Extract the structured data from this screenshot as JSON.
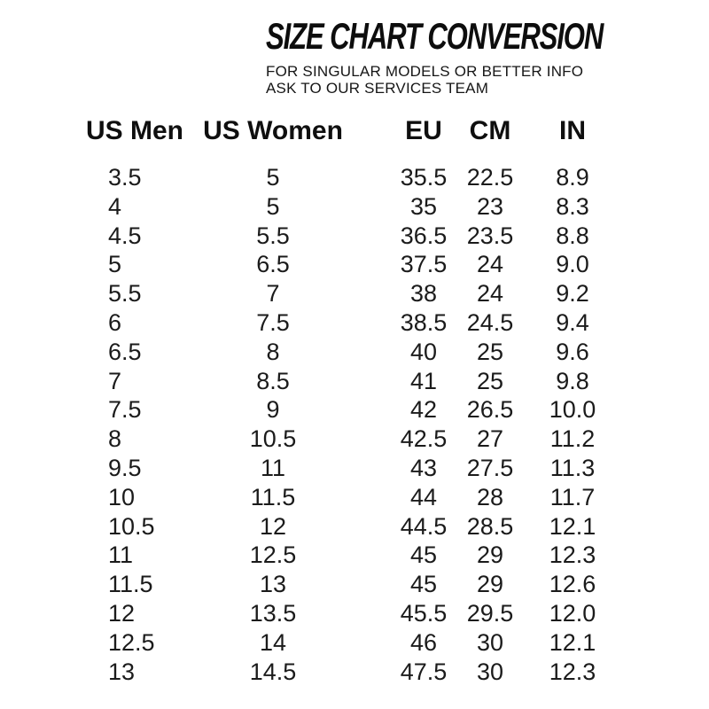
{
  "colors": {
    "text": "#141414",
    "background": "#ffffff"
  },
  "chart_data": {
    "type": "table",
    "title": "SIZE CHART CONVERSION",
    "subtitle": [
      "FOR SINGULAR MODELS OR BETTER INFO",
      "ASK TO OUR SERVICES TEAM"
    ],
    "columns": [
      "US Men",
      "US Women",
      "EU",
      "CM",
      "IN"
    ],
    "rows": [
      [
        "3.5",
        "5",
        "35.5",
        "22.5",
        "8.9"
      ],
      [
        "4",
        "5",
        "35",
        "23",
        "8.3"
      ],
      [
        "4.5",
        "5.5",
        "36.5",
        "23.5",
        "8.8"
      ],
      [
        "5",
        "6.5",
        "37.5",
        "24",
        "9.0"
      ],
      [
        "5.5",
        "7",
        "38",
        "24",
        "9.2"
      ],
      [
        "6",
        "7.5",
        "38.5",
        "24.5",
        "9.4"
      ],
      [
        "6.5",
        "8",
        "40",
        "25",
        "9.6"
      ],
      [
        "7",
        "8.5",
        "41",
        "25",
        "9.8"
      ],
      [
        "7.5",
        "9",
        "42",
        "26.5",
        "10.0"
      ],
      [
        "8",
        "10.5",
        "42.5",
        "27",
        "11.2"
      ],
      [
        "9.5",
        "11",
        "43",
        "27.5",
        "11.3"
      ],
      [
        "10",
        "11.5",
        "44",
        "28",
        "11.7"
      ],
      [
        "10.5",
        "12",
        "44.5",
        "28.5",
        "12.1"
      ],
      [
        "11",
        "12.5",
        "45",
        "29",
        "12.3"
      ],
      [
        "11.5",
        "13",
        "45",
        "29",
        "12.6"
      ],
      [
        "12",
        "13.5",
        "45.5",
        "29.5",
        "12.0"
      ],
      [
        "12.5",
        "14",
        "46",
        "30",
        "12.1"
      ],
      [
        "13",
        "14.5",
        "47.5",
        "30",
        "12.3"
      ]
    ]
  }
}
